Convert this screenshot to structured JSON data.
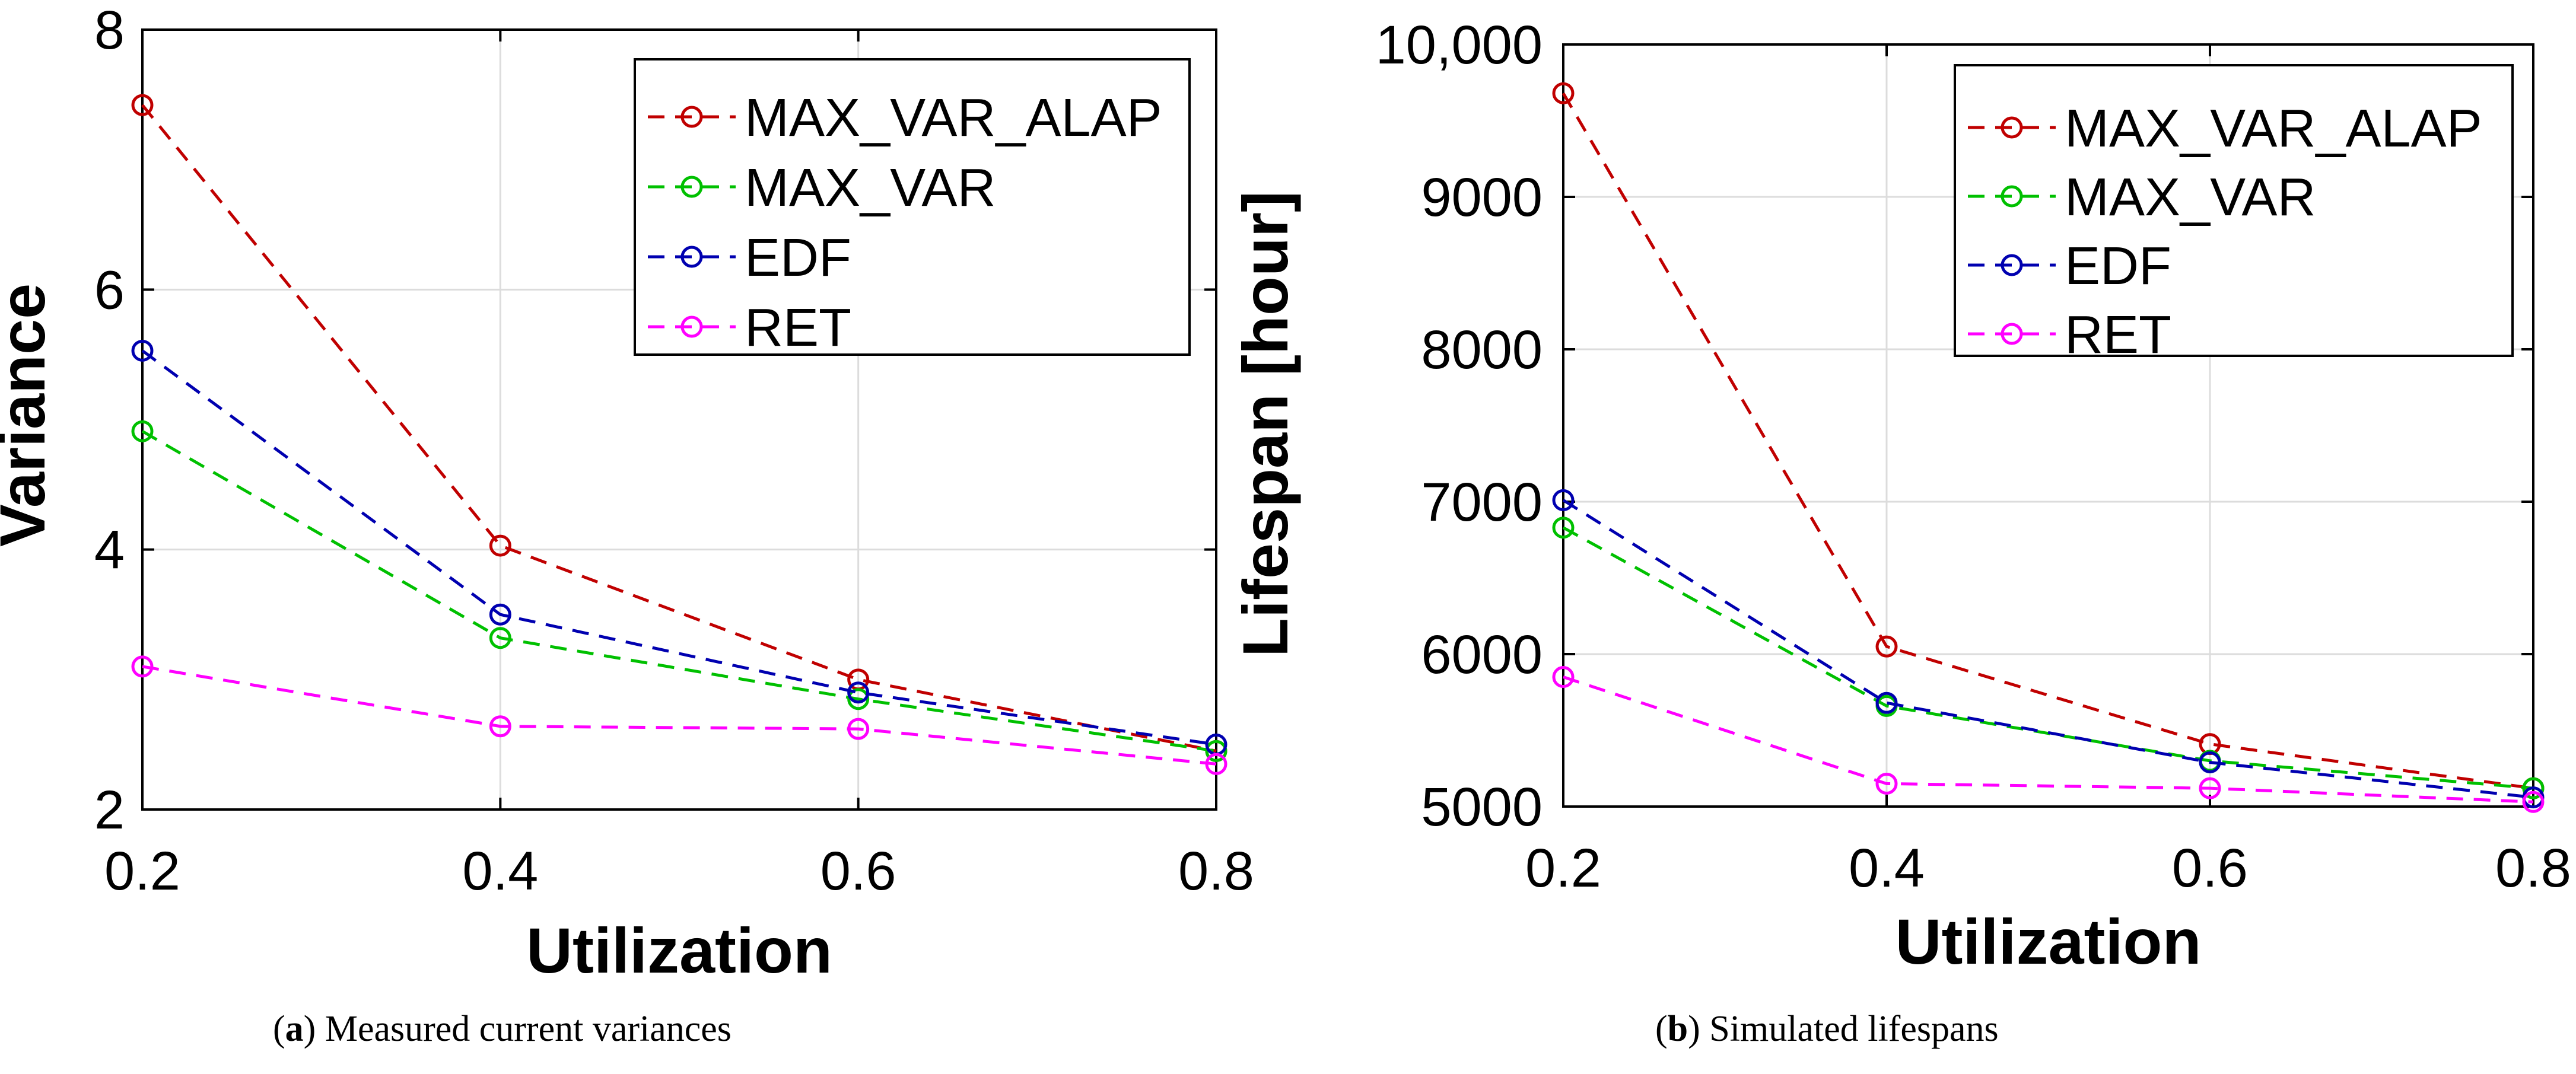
{
  "colors": {
    "MAX_VAR_ALAP": "#c00000",
    "MAX_VAR": "#00c000",
    "EDF": "#0000b0",
    "RET": "#ff00ff",
    "grid": "#dcdcdc",
    "axis": "#000000"
  },
  "chart_data": [
    {
      "type": "line",
      "xlabel": "Utilization",
      "ylabel": "Variance",
      "xlim": [
        0.2,
        0.8
      ],
      "ylim": [
        2,
        8
      ],
      "xticks": [
        0.2,
        0.4,
        0.6,
        0.8
      ],
      "xtick_labels": [
        "0.2",
        "0.4",
        "0.6",
        "0.8"
      ],
      "yticks": [
        2,
        4,
        6,
        8
      ],
      "ytick_labels": [
        "2",
        "4",
        "6",
        "8"
      ],
      "grid": true,
      "legend_position": "top-right",
      "line_style": "dashed",
      "marker": "circle",
      "x": [
        0.2,
        0.4,
        0.6,
        0.8
      ],
      "series": [
        {
          "name": "MAX_VAR_ALAP",
          "color": "#c00000",
          "values": [
            7.42,
            4.03,
            3.0,
            2.45
          ]
        },
        {
          "name": "MAX_VAR",
          "color": "#00c000",
          "values": [
            4.91,
            3.32,
            2.85,
            2.45
          ]
        },
        {
          "name": "EDF",
          "color": "#0000b0",
          "values": [
            5.53,
            3.5,
            2.9,
            2.5
          ]
        },
        {
          "name": "RET",
          "color": "#ff00ff",
          "values": [
            3.1,
            2.64,
            2.62,
            2.35
          ]
        }
      ],
      "caption_label": "a",
      "caption_text": " Measured current variances"
    },
    {
      "type": "line",
      "xlabel": "Utilization",
      "ylabel": "Lifespan [hour]",
      "xlim": [
        0.2,
        0.8
      ],
      "ylim": [
        5000,
        10000
      ],
      "xticks": [
        0.2,
        0.4,
        0.6,
        0.8
      ],
      "xtick_labels": [
        "0.2",
        "0.4",
        "0.6",
        "0.8"
      ],
      "yticks": [
        5000,
        6000,
        7000,
        8000,
        9000,
        10000
      ],
      "ytick_labels": [
        "5000",
        "6000",
        "7000",
        "8000",
        "9000",
        "10,000"
      ],
      "grid": true,
      "legend_position": "top-right",
      "line_style": "dashed",
      "marker": "circle",
      "x": [
        0.2,
        0.4,
        0.6,
        0.8
      ],
      "series": [
        {
          "name": "MAX_VAR_ALAP",
          "color": "#c00000",
          "values": [
            9680,
            6050,
            5410,
            5120
          ]
        },
        {
          "name": "MAX_VAR",
          "color": "#00c000",
          "values": [
            6830,
            5660,
            5300,
            5120
          ]
        },
        {
          "name": "EDF",
          "color": "#0000b0",
          "values": [
            7010,
            5680,
            5290,
            5060
          ]
        },
        {
          "name": "RET",
          "color": "#ff00ff",
          "values": [
            5850,
            5150,
            5120,
            5030
          ]
        }
      ],
      "caption_label": "b",
      "caption_text": " Simulated lifespans"
    }
  ]
}
